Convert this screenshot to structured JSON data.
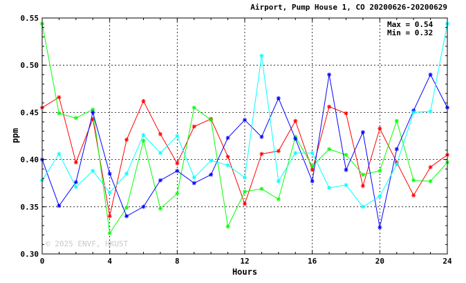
{
  "title": "Airport, Pump House 1, CO 20200626-20200629",
  "stats": {
    "max": "Max = 0.54",
    "min": "Min = 0.32"
  },
  "watermark": "© 2025  ENVF, HKUST",
  "chart_data": {
    "type": "line",
    "xlabel": "Hours",
    "ylabel": "ppm",
    "xlim": [
      0,
      24
    ],
    "ylim": [
      0.3,
      0.55
    ],
    "x_ticks": [
      0,
      4,
      8,
      12,
      16,
      20,
      24
    ],
    "y_ticks": [
      0.3,
      0.35,
      0.4,
      0.45,
      0.5,
      0.55
    ],
    "grid": true,
    "x": [
      0,
      1,
      2,
      3,
      4,
      5,
      6,
      7,
      8,
      9,
      10,
      11,
      12,
      13,
      14,
      15,
      16,
      17,
      18,
      19,
      20,
      21,
      22,
      23,
      24
    ],
    "series": [
      {
        "color": "#ff0000",
        "values": [
          0.455,
          0.466,
          0.397,
          0.443,
          0.34,
          0.421,
          0.462,
          0.427,
          0.396,
          0.435,
          0.443,
          0.403,
          0.353,
          0.406,
          0.409,
          0.441,
          0.389,
          0.456,
          0.449,
          0.372,
          0.433,
          0.397,
          0.362,
          0.392,
          0.405
        ]
      },
      {
        "color": "#00ff00",
        "values": [
          0.544,
          0.449,
          0.444,
          0.453,
          0.322,
          0.349,
          0.42,
          0.348,
          0.364,
          0.455,
          0.442,
          0.329,
          0.366,
          0.369,
          0.358,
          0.424,
          0.393,
          0.411,
          0.405,
          0.384,
          0.388,
          0.441,
          0.378,
          0.377,
          0.397
        ]
      },
      {
        "color": "#0000ff",
        "values": [
          0.4,
          0.351,
          0.376,
          0.45,
          0.385,
          0.34,
          0.35,
          0.378,
          0.388,
          0.375,
          0.384,
          0.423,
          0.442,
          0.424,
          0.465,
          0.422,
          0.377,
          0.49,
          0.389,
          0.429,
          0.328,
          0.411,
          0.452,
          0.49,
          0.455
        ]
      },
      {
        "color": "#00ffff",
        "values": [
          0.378,
          0.406,
          0.371,
          0.388,
          0.365,
          0.385,
          0.426,
          0.407,
          0.425,
          0.381,
          0.399,
          0.394,
          0.381,
          0.51,
          0.377,
          0.407,
          0.407,
          0.37,
          0.373,
          0.35,
          0.361,
          0.395,
          0.45,
          0.451,
          0.544
        ]
      }
    ]
  }
}
